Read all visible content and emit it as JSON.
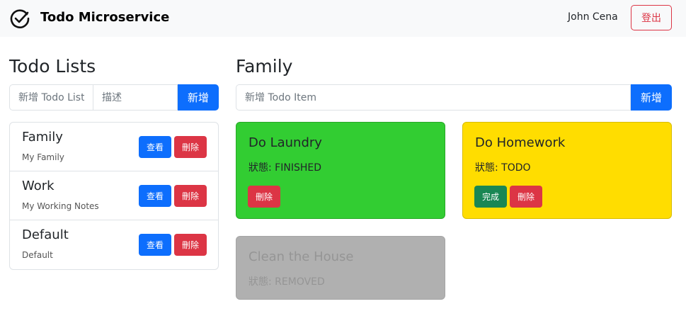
{
  "navbar": {
    "brand": "Todo Microservice",
    "logo_icon": "check-circle-icon",
    "user": "John Cena",
    "logout_label": "登出"
  },
  "lists_panel": {
    "title": "Todo Lists",
    "name_placeholder": "新增 Todo List",
    "desc_placeholder": "描述",
    "add_label": "新增",
    "items": [
      {
        "title": "Family",
        "subtitle": "My Family",
        "view_label": "查看",
        "delete_label": "刪除"
      },
      {
        "title": "Work",
        "subtitle": "My Working Notes",
        "view_label": "查看",
        "delete_label": "刪除"
      },
      {
        "title": "Default",
        "subtitle": "Default",
        "view_label": "查看",
        "delete_label": "刪除"
      }
    ]
  },
  "items_panel": {
    "title": "Family",
    "item_placeholder": "新增 Todo Item",
    "add_label": "新增",
    "cards": [
      {
        "title": "Do Laundry",
        "status": "狀態: FINISHED",
        "delete_label": "刪除",
        "color": "#32cd32"
      },
      {
        "title": "Do Homework",
        "status": "狀態: TODO",
        "complete_label": "完成",
        "delete_label": "刪除",
        "color": "#ffdd00"
      },
      {
        "title": "Clean the House",
        "status": "狀態: REMOVED",
        "color": "#b0b0b0"
      }
    ]
  },
  "colors": {
    "primary": "#0d6efd",
    "danger": "#dc3545",
    "success": "#198754"
  }
}
